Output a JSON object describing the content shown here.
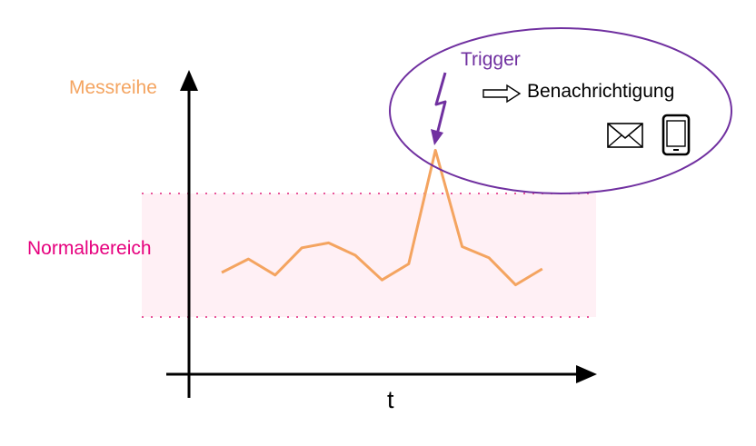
{
  "labels": {
    "series": "Messreihe",
    "normal_range": "Normalbereich",
    "x_axis": "t",
    "trigger": "Trigger",
    "notification": "Benachrichtigung"
  },
  "icons": {
    "trigger": "lightning-bolt-icon",
    "arrow": "hollow-right-arrow-icon",
    "email": "envelope-icon",
    "phone": "smartphone-icon"
  },
  "colors": {
    "series": "#f4a460",
    "normal_label": "#e6007e",
    "normal_band": "#fff0f5",
    "normal_bound": "#e8569a",
    "trigger": "#7030a0",
    "axis": "#000000"
  },
  "series_points": [
    {
      "t": 1,
      "v": 0.36
    },
    {
      "t": 2,
      "v": 0.47
    },
    {
      "t": 3,
      "v": 0.34
    },
    {
      "t": 4,
      "v": 0.56
    },
    {
      "t": 5,
      "v": 0.6
    },
    {
      "t": 6,
      "v": 0.5
    },
    {
      "t": 7,
      "v": 0.3
    },
    {
      "t": 8,
      "v": 0.43
    },
    {
      "t": 9,
      "v": 1.35
    },
    {
      "t": 10,
      "v": 0.57
    },
    {
      "t": 11,
      "v": 0.48
    },
    {
      "t": 12,
      "v": 0.26
    },
    {
      "t": 13,
      "v": 0.39
    }
  ],
  "normal_range": {
    "lower": 0,
    "upper": 1
  }
}
